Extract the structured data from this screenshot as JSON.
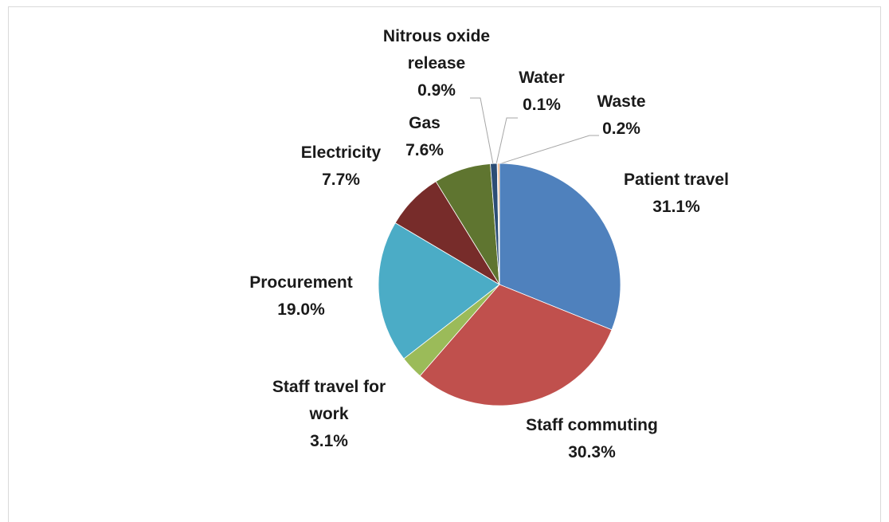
{
  "chart_data": {
    "type": "pie",
    "categories": [
      "Patient travel",
      "Staff commuting",
      "Staff travel for work",
      "Procurement",
      "Electricity",
      "Gas",
      "Nitrous oxide release",
      "Water",
      "Waste"
    ],
    "values": [
      31.1,
      30.3,
      3.1,
      19.0,
      7.7,
      7.6,
      0.9,
      0.1,
      0.2
    ],
    "value_labels": [
      "31.1%",
      "30.3%",
      "3.1%",
      "19.0%",
      "7.7%",
      "7.6%",
      "0.9%",
      "0.1%",
      "0.2%"
    ],
    "colors": [
      "#4f81bd",
      "#c0504d",
      "#9bbb59",
      "#4bacc6",
      "#772c2a",
      "#5f7530",
      "#2c4d75",
      "#8064a2",
      "#f79646"
    ]
  }
}
